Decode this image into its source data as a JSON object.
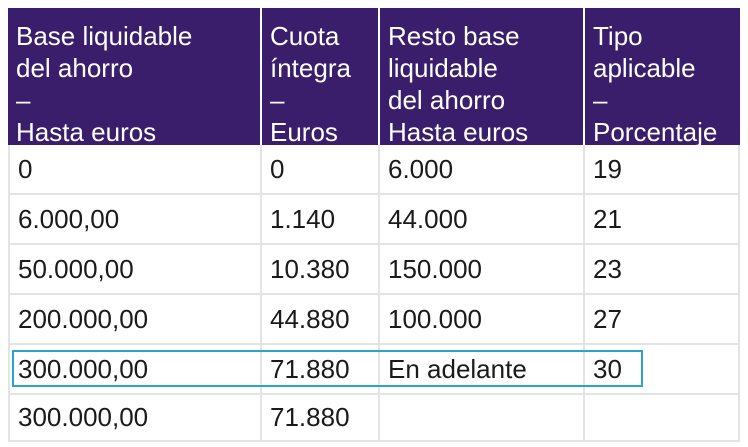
{
  "table": {
    "header": [
      [
        "Base liquidable",
        "del ahorro",
        "–",
        "Hasta euros"
      ],
      [
        "Cuota",
        "íntegra",
        "–",
        "Euros"
      ],
      [
        "Resto base",
        "liquidable",
        "del ahorro",
        "Hasta euros"
      ],
      [
        "Tipo",
        "aplicable",
        "–",
        "Porcentaje"
      ]
    ],
    "rows": [
      [
        "0",
        "0",
        "6.000",
        "19"
      ],
      [
        "6.000,00",
        "1.140",
        "44.000",
        "21"
      ],
      [
        "50.000,00",
        "10.380",
        "150.000",
        "23"
      ],
      [
        "200.000,00",
        "44.880",
        "100.000",
        "27"
      ],
      [
        "300.000,00",
        "71.880",
        "En adelante",
        "30"
      ],
      [
        "300.000,00",
        "71.880"
      ]
    ]
  }
}
